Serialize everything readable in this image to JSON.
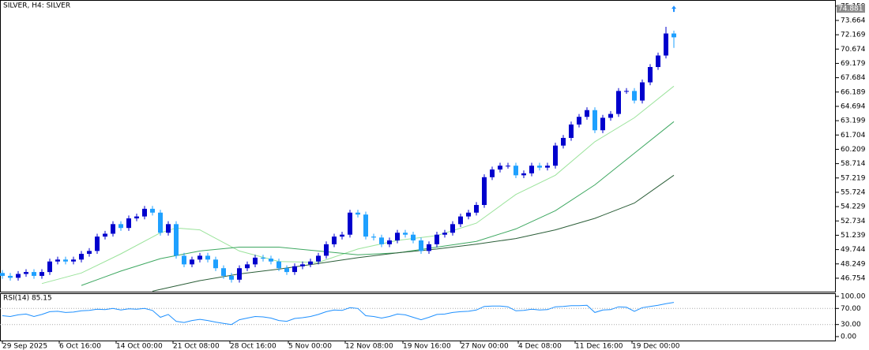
{
  "chart_data": [
    {
      "type": "candlestick",
      "title": "SILVER, H4:  SILVER",
      "up_color": "#0000cd",
      "down_color": "#1ea0ff",
      "open": [
        47.3,
        47.0,
        46.8,
        47.2,
        47.4,
        47.0,
        47.4,
        48.5,
        48.7,
        48.5,
        48.7,
        49.3,
        49.6,
        51.1,
        51.4,
        52.4,
        52.0,
        53.0,
        53.2,
        54.0,
        53.6,
        51.5,
        52.4,
        49.1,
        48.2,
        48.7,
        49.1,
        48.7,
        47.8,
        47.0,
        46.6,
        47.8,
        48.2,
        48.9,
        48.8,
        48.5,
        47.8,
        47.4,
        48.0,
        48.2,
        48.5,
        49.1,
        50.3,
        51.1,
        51.3,
        53.6,
        53.4,
        51.1,
        51.0,
        50.3,
        50.7,
        51.5,
        51.3,
        50.7,
        49.6,
        50.3,
        51.3,
        51.5,
        52.4,
        53.2,
        53.6,
        54.4,
        57.3,
        58.1,
        58.5,
        58.5,
        57.5,
        57.7,
        58.5,
        58.3,
        58.5,
        60.6,
        61.4,
        62.8,
        63.6,
        64.3,
        62.2,
        63.5,
        63.9,
        66.3,
        66.3,
        65.3,
        67.2,
        68.8,
        70.0,
        72.3
      ],
      "high": [
        47.6,
        47.3,
        47.5,
        47.7,
        47.7,
        47.7,
        48.8,
        49.0,
        49.0,
        49.0,
        49.6,
        49.9,
        51.4,
        51.7,
        52.7,
        52.7,
        53.3,
        53.5,
        54.3,
        54.3,
        53.9,
        52.7,
        52.7,
        49.4,
        49.0,
        49.4,
        49.4,
        49.0,
        48.1,
        47.3,
        48.1,
        48.5,
        49.2,
        49.2,
        49.1,
        48.8,
        48.1,
        48.3,
        48.5,
        48.8,
        49.4,
        50.6,
        51.4,
        51.6,
        53.9,
        53.9,
        53.7,
        51.4,
        51.3,
        51.0,
        51.8,
        51.8,
        51.6,
        51.0,
        50.6,
        51.6,
        51.8,
        52.7,
        53.5,
        53.9,
        54.7,
        57.6,
        58.4,
        58.8,
        58.8,
        58.8,
        58.0,
        58.8,
        58.8,
        58.8,
        60.9,
        61.7,
        63.1,
        63.9,
        64.6,
        64.6,
        63.8,
        64.2,
        66.6,
        66.6,
        66.6,
        67.5,
        69.1,
        70.3,
        73.0,
        72.6
      ],
      "low": [
        46.7,
        46.5,
        46.5,
        46.9,
        46.7,
        46.7,
        47.1,
        48.2,
        48.2,
        48.2,
        48.4,
        49.0,
        49.3,
        50.8,
        51.1,
        51.7,
        51.7,
        52.7,
        52.9,
        53.3,
        51.2,
        51.2,
        48.8,
        47.9,
        47.9,
        48.4,
        48.4,
        47.5,
        46.7,
        46.3,
        46.3,
        47.5,
        47.9,
        48.5,
        48.2,
        47.5,
        47.1,
        47.1,
        47.7,
        47.9,
        48.2,
        48.8,
        50.0,
        50.8,
        51.0,
        53.1,
        50.8,
        50.7,
        50.0,
        50.0,
        50.4,
        51.0,
        50.4,
        49.3,
        49.3,
        50.0,
        51.0,
        51.2,
        52.1,
        52.9,
        53.3,
        54.1,
        57.0,
        57.8,
        58.2,
        57.2,
        57.2,
        57.4,
        58.0,
        58.0,
        58.2,
        60.3,
        61.1,
        62.5,
        63.3,
        61.9,
        61.9,
        63.2,
        63.6,
        66.0,
        65.0,
        65.0,
        66.9,
        68.5,
        69.7,
        70.8
      ],
      "close": [
        47.0,
        46.8,
        47.2,
        47.4,
        47.0,
        47.4,
        48.5,
        48.7,
        48.5,
        48.7,
        49.3,
        49.6,
        51.1,
        51.4,
        52.4,
        52.0,
        53.0,
        53.2,
        54.0,
        53.6,
        51.5,
        52.4,
        49.1,
        48.2,
        48.7,
        49.1,
        48.7,
        47.8,
        47.0,
        46.6,
        47.8,
        48.2,
        48.9,
        48.8,
        48.5,
        47.8,
        47.4,
        48.0,
        48.2,
        48.5,
        49.1,
        50.3,
        51.1,
        51.3,
        53.6,
        53.4,
        51.1,
        51.0,
        50.3,
        50.7,
        51.5,
        51.3,
        50.7,
        49.6,
        50.3,
        51.3,
        51.5,
        52.4,
        53.2,
        53.6,
        54.4,
        57.3,
        58.1,
        58.5,
        58.5,
        57.5,
        57.7,
        58.5,
        58.3,
        58.5,
        60.6,
        61.4,
        62.8,
        63.6,
        64.3,
        62.2,
        63.5,
        63.9,
        66.3,
        66.3,
        65.3,
        67.2,
        68.8,
        70.0,
        72.3,
        71.9
      ],
      "series": [
        {
          "color": "#9be39b",
          "x": [
            5,
            10,
            15,
            20,
            22,
            25,
            30,
            35,
            40,
            45,
            50,
            55,
            60,
            65,
            70,
            75,
            80,
            85
          ],
          "values": [
            46.2,
            47.3,
            49.3,
            51.5,
            52.0,
            51.8,
            49.6,
            48.5,
            48.4,
            49.8,
            50.7,
            51.2,
            52.5,
            55.5,
            57.5,
            61.0,
            63.5,
            66.8
          ]
        },
        {
          "color": "#3ea861",
          "x": [
            10,
            15,
            20,
            25,
            30,
            35,
            40,
            45,
            50,
            55,
            60,
            65,
            70,
            75,
            80,
            85
          ],
          "values": [
            46.0,
            47.5,
            48.8,
            49.6,
            50.0,
            50.0,
            49.6,
            49.2,
            49.4,
            50.0,
            50.6,
            51.9,
            53.8,
            56.5,
            59.8,
            63.1
          ]
        },
        {
          "color": "#2b5e38",
          "x": [
            19,
            25,
            30,
            35,
            40,
            45,
            50,
            55,
            60,
            65,
            70,
            75,
            80,
            85
          ],
          "values": [
            45.4,
            46.5,
            47.2,
            47.7,
            48.3,
            48.9,
            49.4,
            49.8,
            50.3,
            50.9,
            51.8,
            53.0,
            54.6,
            57.5
          ]
        }
      ],
      "last_price": 74.881,
      "xlim": [
        -0.3,
        105.5
      ],
      "xticks": [
        {
          "value": 0,
          "label": "29 Sep 2025"
        },
        {
          "value": 7.2,
          "label": "6 Oct 16:00"
        },
        {
          "value": 14.4,
          "label": "14 Oct 00:00"
        },
        {
          "value": 21.6,
          "label": "21 Oct 08:00"
        },
        {
          "value": 28.8,
          "label": "28 Oct 16:00"
        },
        {
          "value": 36.2,
          "label": "5 Nov 00:00"
        },
        {
          "value": 43.4,
          "label": "12 Nov 08:00"
        },
        {
          "value": 50.7,
          "label": "19 Nov 16:00"
        },
        {
          "value": 58,
          "label": "27 Nov 00:00"
        },
        {
          "value": 65.3,
          "label": "4 Dec 08:00"
        },
        {
          "value": 72.5,
          "label": "11 Dec 16:00"
        },
        {
          "value": 79.7,
          "label": "19 Dec 00:00"
        }
      ],
      "ylim": [
        45.35,
        75.55
      ],
      "yticks": [
        75.159,
        73.664,
        72.169,
        70.674,
        69.179,
        67.684,
        66.189,
        64.694,
        63.199,
        61.704,
        60.209,
        58.714,
        57.219,
        55.724,
        54.229,
        52.734,
        51.239,
        49.744,
        48.249,
        46.754
      ]
    },
    {
      "type": "line",
      "title": "RSI(14) 85.15",
      "color": "#1e90ff",
      "values": [
        52,
        50,
        54,
        56,
        50,
        55,
        62,
        63,
        60,
        61,
        64,
        65,
        68,
        67,
        70,
        66,
        69,
        68,
        70,
        65,
        48,
        55,
        38,
        35,
        40,
        43,
        40,
        36,
        33,
        30,
        42,
        46,
        50,
        49,
        46,
        40,
        38,
        45,
        47,
        50,
        55,
        62,
        66,
        65,
        72,
        70,
        52,
        50,
        46,
        50,
        56,
        54,
        48,
        42,
        48,
        55,
        56,
        60,
        62,
        63,
        66,
        75,
        76,
        76,
        74,
        64,
        65,
        68,
        66,
        67,
        74,
        75,
        77,
        77,
        78,
        60,
        66,
        67,
        74,
        73,
        63,
        72,
        75,
        78,
        82,
        85.15
      ],
      "levels": [
        70,
        30
      ],
      "ylim": [
        -9.8,
        107.8
      ],
      "yticks": [
        {
          "value": 100,
          "label": "100.00"
        },
        {
          "value": 70,
          "label": "70.00"
        },
        {
          "value": 30,
          "label": "30.00"
        },
        {
          "value": 0,
          "label": "0.00"
        }
      ]
    }
  ]
}
